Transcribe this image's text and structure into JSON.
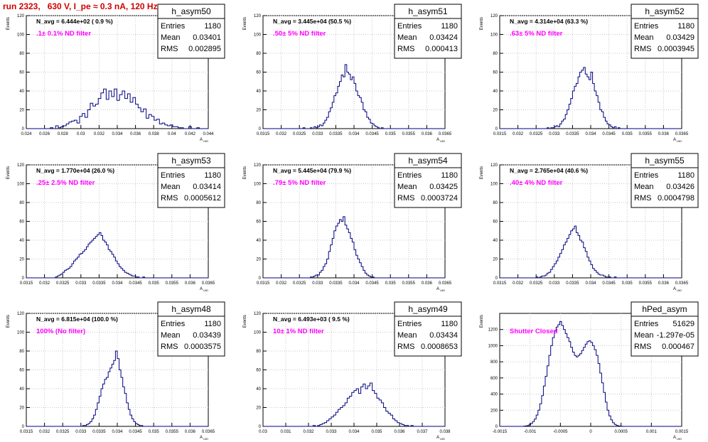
{
  "page_title": "run 2323,   630 V, I_pe ≈ 0.3 nA, 120 Hz",
  "colors": {
    "title": "#d00000",
    "histogram": "#000080",
    "grid": "#c8c8c8",
    "annotation": "#ff00ff"
  },
  "chart_data": [
    {
      "type": "bar",
      "name": "h_asym50",
      "ylabel": "Events",
      "xlabel": "A_UID",
      "ylim": [
        0,
        120
      ],
      "xlim": [
        0.0235,
        0.044
      ],
      "xticks": [
        "0.024",
        "0.026",
        "0.028",
        "0.03",
        "0.032",
        "0.034",
        "0.036",
        "0.038",
        "0.04",
        "0.042",
        "0.044"
      ],
      "yticks": [
        "0",
        "20",
        "40",
        "60",
        "80",
        "100",
        "120"
      ],
      "navg": "N_avg = 6.444e+02 ( 0.9 %)",
      "annotation": ".1± 0.1% ND filter",
      "stats": {
        "entries": "1180",
        "mean": "0.03401",
        "rms": "0.002895"
      },
      "bin_start": 0.0235,
      "bin_width": 0.0003,
      "values": [
        0,
        0,
        0,
        0,
        0,
        0,
        0,
        0,
        0,
        1,
        0,
        3,
        1,
        2,
        3,
        5,
        7,
        8,
        9,
        6,
        13,
        16,
        12,
        20,
        27,
        24,
        26,
        32,
        38,
        42,
        31,
        40,
        34,
        42,
        30,
        36,
        40,
        32,
        37,
        28,
        33,
        26,
        22,
        18,
        21,
        11,
        15,
        13,
        9,
        10,
        5,
        6,
        4,
        3,
        4,
        2,
        2,
        1,
        1,
        0,
        0,
        2,
        0,
        0,
        1,
        0,
        0,
        0,
        0,
        0
      ]
    },
    {
      "type": "bar",
      "name": "h_asym51",
      "ylabel": "Events",
      "xlabel": "A_UID",
      "ylim": [
        0,
        120
      ],
      "xlim": [
        0.0315,
        0.0365
      ],
      "xticks": [
        "0.0315",
        "0.032",
        "0.0325",
        "0.033",
        "0.0335",
        "0.034",
        "0.0345",
        "0.035",
        "0.0355",
        "0.036",
        "0.0365"
      ],
      "yticks": [
        "0",
        "20",
        "40",
        "60",
        "80",
        "100",
        "120"
      ],
      "navg": "N_avg = 3.445e+04 (50.5 %)",
      "annotation": ".50± 5% ND filter",
      "stats": {
        "entries": "1180",
        "mean": "0.03424",
        "rms": "0.000413"
      },
      "bin_start": 0.0315,
      "bin_width": 5e-05,
      "values": [
        0,
        0,
        0,
        0,
        0,
        0,
        0,
        0,
        0,
        0,
        0,
        0,
        0,
        0,
        0,
        0,
        0,
        0,
        0,
        0,
        0,
        0,
        1,
        0,
        0,
        0,
        1,
        0,
        2,
        1,
        2,
        4,
        3,
        6,
        9,
        12,
        18,
        22,
        28,
        35,
        38,
        45,
        50,
        57,
        55,
        68,
        60,
        58,
        52,
        55,
        48,
        40,
        35,
        33,
        28,
        20,
        18,
        12,
        10,
        6,
        5,
        3,
        2,
        1,
        0,
        1,
        0,
        0,
        0,
        0,
        0,
        0,
        0,
        0,
        0,
        0,
        0,
        0,
        0,
        0,
        0,
        0,
        0,
        0,
        0,
        0,
        0,
        0,
        0,
        0,
        0,
        0,
        0,
        0,
        0,
        0,
        0,
        0,
        0,
        0
      ]
    },
    {
      "type": "bar",
      "name": "h_asym52",
      "ylabel": "Events",
      "xlabel": "A_UID",
      "ylim": [
        0,
        120
      ],
      "xlim": [
        0.0315,
        0.0365
      ],
      "xticks": [
        "0.0315",
        "0.032",
        "0.0325",
        "0.033",
        "0.0335",
        "0.034",
        "0.0345",
        "0.035",
        "0.0355",
        "0.036",
        "0.0365"
      ],
      "yticks": [
        "0",
        "20",
        "40",
        "60",
        "80",
        "100",
        "120"
      ],
      "navg": "N_avg = 4.314e+04 (63.3 %)",
      "annotation": ".63± 5% ND filter",
      "stats": {
        "entries": "1180",
        "mean": "0.03429",
        "rms": "0.0003945"
      },
      "bin_start": 0.0315,
      "bin_width": 5e-05,
      "values": [
        0,
        0,
        0,
        0,
        0,
        0,
        0,
        0,
        0,
        0,
        0,
        0,
        0,
        0,
        0,
        0,
        0,
        0,
        0,
        0,
        0,
        0,
        0,
        0,
        0,
        0,
        1,
        0,
        1,
        1,
        2,
        3,
        2,
        5,
        8,
        10,
        15,
        20,
        26,
        32,
        40,
        45,
        48,
        55,
        60,
        62,
        65,
        58,
        55,
        52,
        60,
        48,
        40,
        35,
        28,
        20,
        18,
        12,
        8,
        5,
        4,
        2,
        1,
        2,
        0,
        1,
        0,
        0,
        0,
        0,
        0,
        0,
        0,
        0,
        0,
        0,
        0,
        0,
        0,
        0,
        0,
        0,
        0,
        0,
        0,
        0,
        0,
        0,
        0,
        0,
        0,
        0,
        0,
        0,
        0,
        0,
        0,
        0,
        0,
        0
      ]
    },
    {
      "type": "bar",
      "name": "h_asym53",
      "ylabel": "Events",
      "xlabel": "A_UID",
      "ylim": [
        0,
        120
      ],
      "xlim": [
        0.0315,
        0.0365
      ],
      "xticks": [
        "0.0315",
        "0.032",
        "0.0325",
        "0.033",
        "0.0335",
        "0.034",
        "0.0345",
        "0.035",
        "0.0355",
        "0.036",
        "0.0365"
      ],
      "yticks": [
        "0",
        "20",
        "40",
        "60",
        "80",
        "100",
        "120"
      ],
      "navg": "N_avg = 1.770e+04 (26.0 %)",
      "annotation": ".25± 2.5% ND filter",
      "stats": {
        "entries": "1180",
        "mean": "0.03414",
        "rms": "0.0005612"
      },
      "bin_start": 0.0315,
      "bin_width": 5e-05,
      "values": [
        0,
        0,
        0,
        0,
        0,
        0,
        0,
        0,
        0,
        0,
        0,
        0,
        0,
        0,
        0,
        0,
        1,
        2,
        3,
        4,
        6,
        8,
        9,
        10,
        12,
        15,
        18,
        20,
        22,
        25,
        26,
        28,
        30,
        33,
        36,
        38,
        40,
        42,
        44,
        46,
        48,
        45,
        40,
        38,
        35,
        30,
        28,
        25,
        22,
        18,
        15,
        12,
        10,
        8,
        6,
        5,
        4,
        3,
        2,
        2,
        1,
        1,
        0,
        0,
        1,
        0,
        0,
        0,
        0,
        0,
        0,
        0,
        0,
        0,
        0,
        0,
        0,
        0,
        0,
        0,
        0,
        0,
        0,
        0,
        0,
        0,
        0,
        0,
        0,
        0,
        0,
        0,
        0,
        0,
        0,
        0,
        0,
        0,
        0,
        0
      ]
    },
    {
      "type": "bar",
      "name": "h_asym54",
      "ylabel": "Events",
      "xlabel": "A_UID",
      "ylim": [
        0,
        120
      ],
      "xlim": [
        0.0315,
        0.0365
      ],
      "xticks": [
        "0.0315",
        "0.032",
        "0.0325",
        "0.033",
        "0.0335",
        "0.034",
        "0.0345",
        "0.035",
        "0.0355",
        "0.036",
        "0.0365"
      ],
      "yticks": [
        "0",
        "20",
        "40",
        "60",
        "80",
        "100",
        "120"
      ],
      "navg": "N_avg = 5.445e+04 (79.9 %)",
      "annotation": ".79± 5% ND filter",
      "stats": {
        "entries": "1180",
        "mean": "0.03425",
        "rms": "0.0003724"
      },
      "bin_start": 0.0315,
      "bin_width": 5e-05,
      "values": [
        0,
        0,
        0,
        0,
        0,
        0,
        0,
        0,
        0,
        0,
        0,
        0,
        0,
        0,
        0,
        0,
        0,
        0,
        0,
        0,
        0,
        0,
        0,
        0,
        0,
        0,
        1,
        1,
        2,
        3,
        3,
        6,
        8,
        12,
        15,
        20,
        28,
        35,
        42,
        50,
        55,
        58,
        62,
        60,
        65,
        56,
        52,
        48,
        42,
        38,
        30,
        24,
        20,
        16,
        12,
        8,
        5,
        3,
        2,
        1,
        1,
        0,
        0,
        0,
        0,
        0,
        0,
        0,
        0,
        0,
        0,
        0,
        0,
        0,
        0,
        0,
        0,
        0,
        0,
        0,
        0,
        0,
        0,
        0,
        0,
        0,
        0,
        0,
        0,
        0,
        0,
        0,
        0,
        0,
        0,
        0,
        0,
        0,
        0,
        0
      ]
    },
    {
      "type": "bar",
      "name": "h_asym55",
      "ylabel": "Events",
      "xlabel": "A_UID",
      "ylim": [
        0,
        120
      ],
      "xlim": [
        0.0315,
        0.0365
      ],
      "xticks": [
        "0.0315",
        "0.032",
        "0.0325",
        "0.033",
        "0.0335",
        "0.034",
        "0.0345",
        "0.035",
        "0.0355",
        "0.036",
        "0.0365"
      ],
      "yticks": [
        "0",
        "20",
        "40",
        "60",
        "80",
        "100",
        "120"
      ],
      "navg": "N_avg = 2.765e+04 (40.6 %)",
      "annotation": ".40± 4% ND filter",
      "stats": {
        "entries": "1180",
        "mean": "0.03426",
        "rms": "0.0004798"
      },
      "bin_start": 0.0315,
      "bin_width": 5e-05,
      "values": [
        0,
        0,
        0,
        0,
        0,
        0,
        0,
        0,
        0,
        0,
        0,
        0,
        0,
        0,
        0,
        0,
        0,
        0,
        0,
        0,
        1,
        0,
        1,
        2,
        2,
        3,
        5,
        6,
        9,
        12,
        15,
        18,
        22,
        26,
        30,
        35,
        38,
        42,
        46,
        50,
        52,
        55,
        48,
        45,
        40,
        38,
        32,
        28,
        22,
        18,
        14,
        10,
        8,
        6,
        4,
        3,
        3,
        2,
        1,
        1,
        1,
        0,
        0,
        1,
        0,
        0,
        0,
        0,
        0,
        0,
        0,
        0,
        0,
        0,
        0,
        0,
        0,
        0,
        0,
        0,
        0,
        0,
        0,
        0,
        0,
        0,
        0,
        0,
        0,
        0,
        0,
        0,
        0,
        0,
        0,
        0,
        0,
        0,
        0,
        0
      ]
    },
    {
      "type": "bar",
      "name": "h_asym48",
      "ylabel": "Events",
      "xlabel": "A_UID",
      "ylim": [
        0,
        120
      ],
      "xlim": [
        0.0315,
        0.0365
      ],
      "xticks": [
        "0.0315",
        "0.032",
        "0.0325",
        "0.033",
        "0.0335",
        "0.034",
        "0.0345",
        "0.035",
        "0.0355",
        "0.036",
        "0.0365"
      ],
      "yticks": [
        "0",
        "20",
        "40",
        "60",
        "80",
        "100",
        "120"
      ],
      "navg": "N_avg = 6.815e+04 (100.0 %)",
      "annotation": "100% (No filter)",
      "stats": {
        "entries": "1180",
        "mean": "0.03439",
        "rms": "0.0003575"
      },
      "bin_start": 0.0315,
      "bin_width": 5e-05,
      "values": [
        0,
        0,
        0,
        0,
        0,
        0,
        0,
        0,
        0,
        0,
        0,
        0,
        0,
        0,
        0,
        0,
        0,
        0,
        0,
        0,
        0,
        0,
        0,
        0,
        0,
        0,
        0,
        0,
        0,
        0,
        0,
        1,
        1,
        2,
        3,
        5,
        8,
        12,
        18,
        25,
        32,
        40,
        45,
        50,
        52,
        58,
        62,
        66,
        70,
        80,
        72,
        60,
        52,
        42,
        35,
        25,
        18,
        12,
        8,
        5,
        3,
        2,
        1,
        1,
        0,
        0,
        0,
        0,
        0,
        0,
        0,
        0,
        0,
        0,
        0,
        0,
        0,
        0,
        0,
        0,
        0,
        0,
        0,
        0,
        0,
        0,
        0,
        0,
        0,
        0,
        0,
        0,
        0,
        0,
        0,
        0,
        0,
        0,
        0,
        0
      ]
    },
    {
      "type": "bar",
      "name": "h_asym49",
      "ylabel": "Events",
      "xlabel": "A_UID",
      "ylim": [
        0,
        120
      ],
      "xlim": [
        0.03,
        0.038
      ],
      "xticks": [
        "0.03",
        "0.031",
        "0.032",
        "0.033",
        "0.034",
        "0.035",
        "0.036",
        "0.037",
        "0.038"
      ],
      "yticks": [
        "0",
        "20",
        "40",
        "60",
        "80",
        "100",
        "120"
      ],
      "navg": "N_avg = 6.493e+03 ( 9.5 %)",
      "annotation": "10± 1% ND filter",
      "stats": {
        "entries": "1180",
        "mean": "0.03434",
        "rms": "0.0008653"
      },
      "bin_start": 0.03,
      "bin_width": 0.0001,
      "values": [
        0,
        0,
        0,
        0,
        0,
        0,
        0,
        0,
        0,
        0,
        0,
        0,
        0,
        0,
        0,
        0,
        0,
        0,
        0,
        0,
        0,
        0,
        1,
        0,
        1,
        2,
        3,
        4,
        6,
        8,
        10,
        12,
        15,
        18,
        20,
        22,
        25,
        30,
        32,
        36,
        38,
        40,
        35,
        42,
        45,
        40,
        43,
        46,
        38,
        35,
        30,
        28,
        25,
        20,
        16,
        14,
        12,
        8,
        6,
        4,
        3,
        2,
        1,
        1,
        0,
        1,
        0,
        0,
        0,
        0,
        0,
        0,
        0,
        0,
        0,
        0,
        0,
        0,
        0,
        0
      ]
    },
    {
      "type": "bar",
      "name": "hPed_asym",
      "ylabel": "Events",
      "xlabel": "A_UID",
      "ylim": [
        0,
        1400
      ],
      "xlim": [
        -0.0015,
        0.0015
      ],
      "xticks": [
        "-0.0015",
        "-0.001",
        "-0.0005",
        "0",
        "0.0005",
        "0.001",
        "0.0015"
      ],
      "yticks": [
        "0",
        "200",
        "400",
        "600",
        "800",
        "1000",
        "1200"
      ],
      "navg": "",
      "annotation": "Shutter Closed",
      "stats": {
        "entries": "51629",
        "mean": "-1.297e-05",
        "rms": "0.000467"
      },
      "bin_start": -0.0015,
      "bin_width": 3e-05,
      "values": [
        0,
        0,
        0,
        0,
        0,
        0,
        0,
        0,
        0,
        0,
        0,
        0,
        0,
        2,
        5,
        10,
        20,
        35,
        60,
        90,
        140,
        200,
        280,
        380,
        500,
        620,
        750,
        880,
        1000,
        1100,
        1180,
        1230,
        1260,
        1300,
        1250,
        1200,
        1150,
        1100,
        1050,
        980,
        920,
        880,
        860,
        880,
        900,
        940,
        980,
        1020,
        1050,
        1060,
        1040,
        1000,
        950,
        880,
        780,
        660,
        540,
        420,
        300,
        200,
        130,
        80,
        45,
        25,
        12,
        5,
        2,
        1,
        0,
        0,
        0,
        0,
        0,
        0,
        0,
        0,
        0,
        0,
        0,
        0,
        0,
        0,
        0,
        0,
        0,
        0,
        0,
        0,
        0,
        0,
        0,
        0,
        0,
        0,
        0,
        0,
        0,
        0,
        0,
        0,
        0,
        0
      ]
    }
  ]
}
